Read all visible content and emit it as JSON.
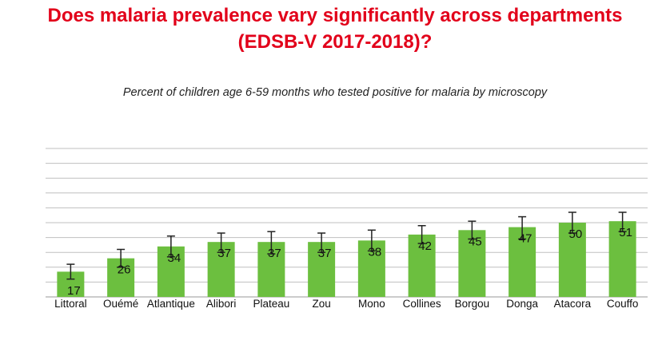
{
  "header": {
    "title_line1": "Does malaria prevalence vary significantly across departments",
    "title_line2": "(EDSB-V 2017-2018)?",
    "subtitle": "Percent of children age 6-59 months who tested positive for malaria by microscopy"
  },
  "colors": {
    "title": "#e2001a",
    "bar": "#6cbf3f",
    "gridline": "#bfbfbf",
    "errorbar": "#222222"
  },
  "chart_data": {
    "type": "bar",
    "title": "Does malaria prevalence vary significantly across departments (EDSB-V 2017-2018)?",
    "subtitle": "Percent of children age 6-59 months who tested positive for malaria by microscopy",
    "xlabel": "",
    "ylabel": "",
    "ylim": [
      0,
      100
    ],
    "grid": true,
    "categories": [
      "Littoral",
      "Ouémé",
      "Atlantique",
      "Alibori",
      "Plateau",
      "Zou",
      "Mono",
      "Collines",
      "Borgou",
      "Donga",
      "Atacora",
      "Couffo"
    ],
    "values": [
      17,
      26,
      34,
      37,
      37,
      37,
      38,
      42,
      45,
      47,
      50,
      51
    ],
    "error_low": [
      12,
      20,
      27,
      30,
      29,
      30,
      31,
      36,
      39,
      39,
      43,
      44
    ],
    "error_high": [
      22,
      32,
      41,
      43,
      44,
      43,
      45,
      48,
      51,
      54,
      57,
      57
    ]
  }
}
